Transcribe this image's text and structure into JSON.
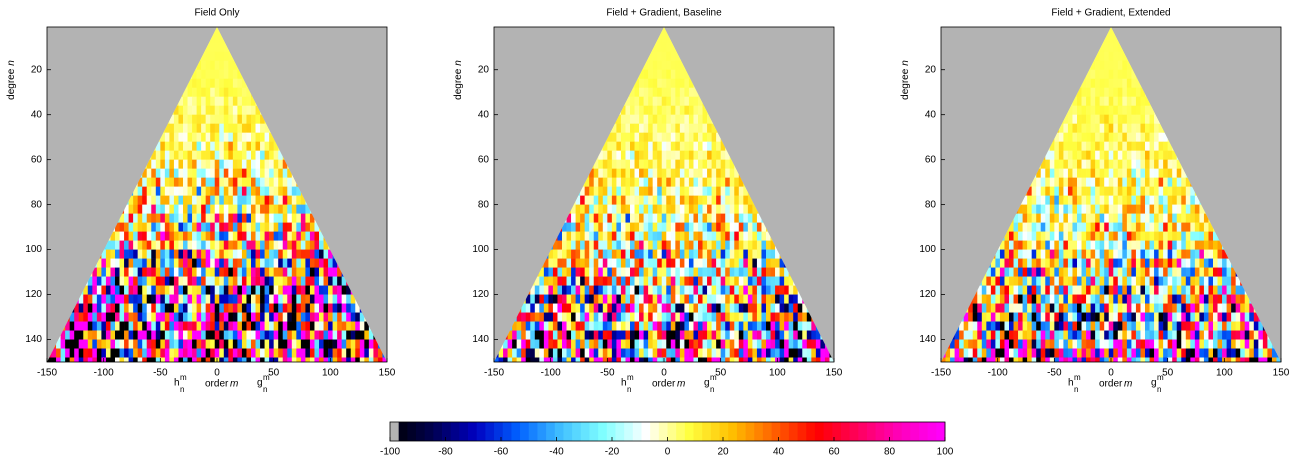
{
  "chart_data": [
    {
      "type": "heatmap",
      "title": "Field Only",
      "xlim": [
        -150,
        150
      ],
      "xticks": [
        -150,
        -100,
        -50,
        0,
        50,
        100,
        150
      ],
      "ylim": [
        1,
        150
      ],
      "yticks": [
        20,
        40,
        60,
        80,
        100,
        120,
        140
      ],
      "y_reversed": true,
      "ylabel": {
        "text": "degree",
        "var": "n"
      },
      "xlabel": {
        "text": "order",
        "var": "m"
      },
      "left_label": {
        "base": "h",
        "sup": "m",
        "sub": "n"
      },
      "right_label": {
        "base": "g",
        "sup": "m",
        "sub": "n"
      },
      "background": "#b3b3b3"
    },
    {
      "type": "heatmap",
      "title": "Field + Gradient, Baseline",
      "xlim": [
        -150,
        150
      ],
      "xticks": [
        -150,
        -100,
        -50,
        0,
        50,
        100,
        150
      ],
      "ylim": [
        1,
        150
      ],
      "yticks": [
        20,
        40,
        60,
        80,
        100,
        120,
        140
      ],
      "y_reversed": true,
      "ylabel": {
        "text": "degree",
        "var": "n"
      },
      "xlabel": {
        "text": "order",
        "var": "m"
      },
      "left_label": {
        "base": "h",
        "sup": "m",
        "sub": "n"
      },
      "right_label": {
        "base": "g",
        "sup": "m",
        "sub": "n"
      },
      "background": "#b3b3b3"
    },
    {
      "type": "heatmap",
      "title": "Field + Gradient, Extended",
      "xlim": [
        -150,
        150
      ],
      "xticks": [
        -150,
        -100,
        -50,
        0,
        50,
        100,
        150
      ],
      "ylim": [
        1,
        150
      ],
      "yticks": [
        20,
        40,
        60,
        80,
        100,
        120,
        140
      ],
      "y_reversed": true,
      "ylabel": {
        "text": "degree",
        "var": "n"
      },
      "xlabel": {
        "text": "order",
        "var": "m"
      },
      "left_label": {
        "base": "h",
        "sup": "m",
        "sub": "n"
      },
      "right_label": {
        "base": "g",
        "sup": "m",
        "sub": "n"
      },
      "background": "#b3b3b3"
    },
    {
      "type": "colorbar",
      "clim": [
        -100,
        100
      ],
      "ticks": [
        -100,
        -80,
        -60,
        -40,
        -20,
        0,
        20,
        40,
        60,
        80,
        100
      ],
      "colors": [
        "#000000",
        "#000050",
        "#0000c0",
        "#0060ff",
        "#40c0ff",
        "#80ffff",
        "#ffffff",
        "#ffff40",
        "#ffc000",
        "#ff6000",
        "#ff0000",
        "#ff0060",
        "#ff00c0",
        "#ff00ff"
      ],
      "nan_color": "#b3b3b3"
    }
  ]
}
